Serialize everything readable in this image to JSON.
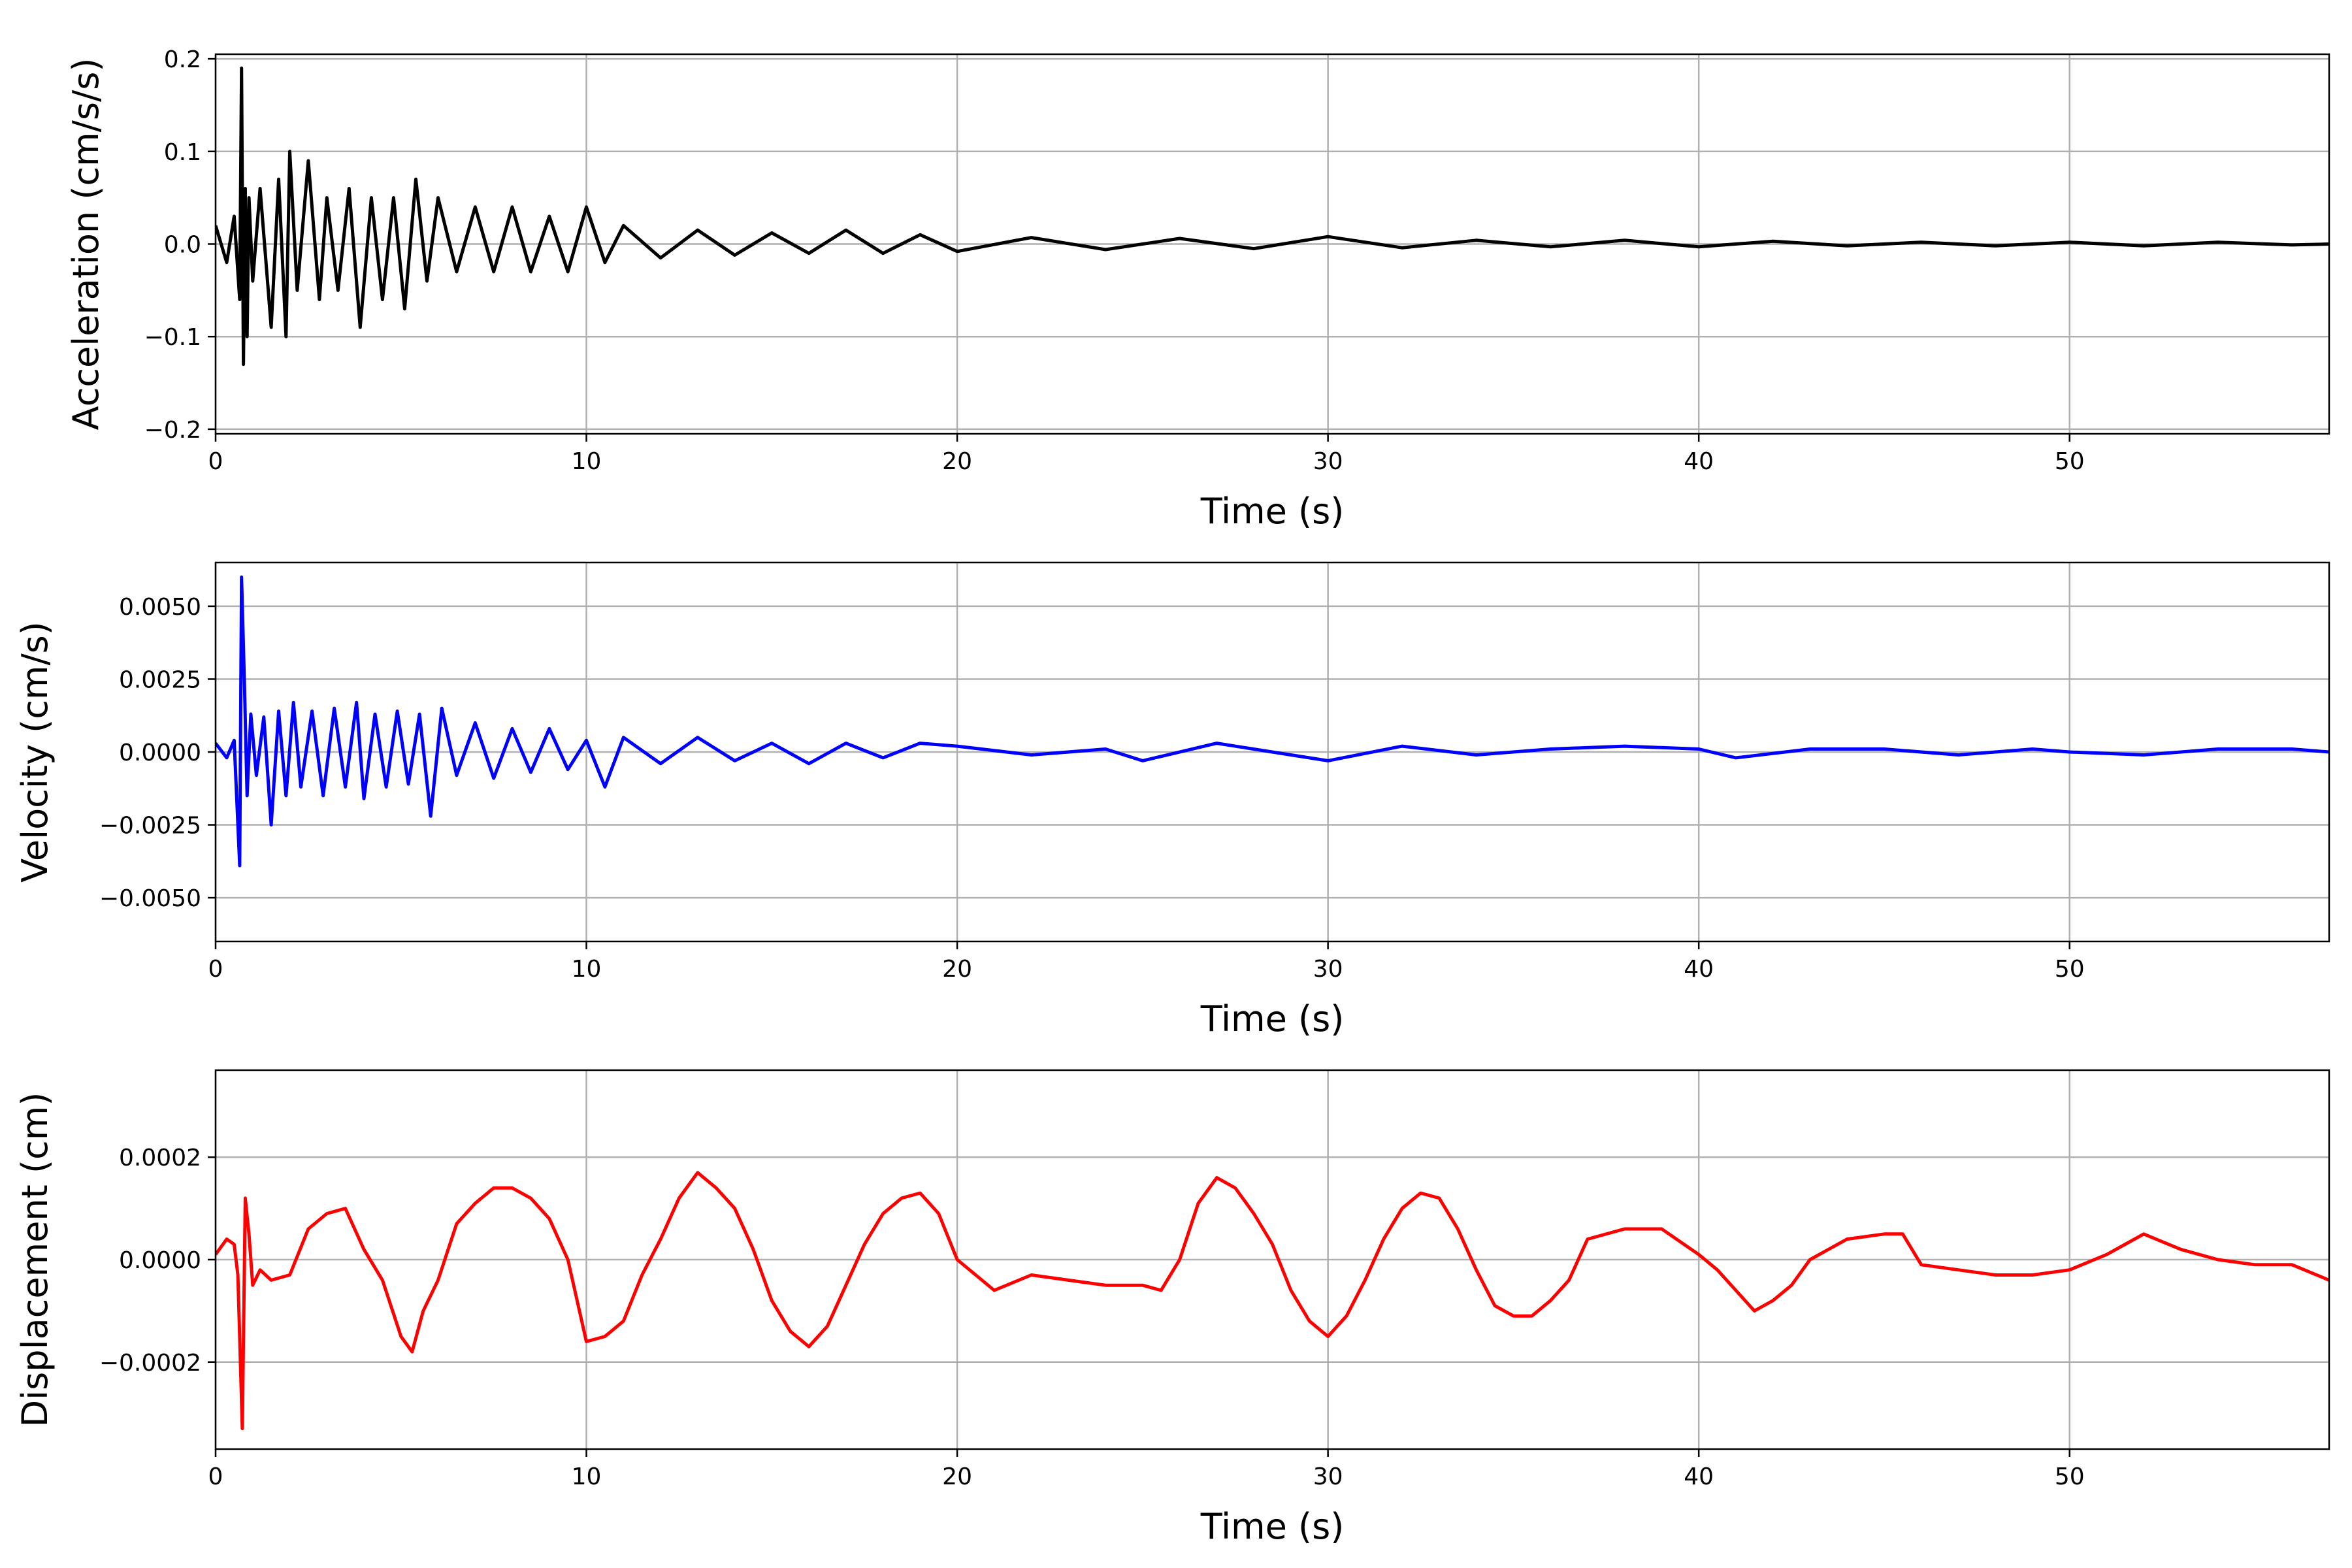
{
  "chart_data": [
    {
      "type": "line",
      "xlabel": "Time (s)",
      "ylabel": "Acceleration (cm/s/s)",
      "xlim": [
        0,
        57
      ],
      "ylim": [
        -0.205,
        0.205
      ],
      "xticks": [
        0,
        10,
        20,
        30,
        40,
        50
      ],
      "yticks": [
        -0.2,
        -0.1,
        0.0,
        0.1,
        0.2
      ],
      "ytick_labels": [
        "−0.2",
        "−0.1",
        "0.0",
        "0.1",
        "0.2"
      ],
      "grid": true,
      "color": "#000000",
      "series": [
        {
          "x": [
            0,
            0.3,
            0.5,
            0.65,
            0.7,
            0.75,
            0.8,
            0.85,
            0.9,
            1.0,
            1.2,
            1.5,
            1.7,
            1.9,
            2.0,
            2.2,
            2.5,
            2.8,
            3.0,
            3.3,
            3.6,
            3.9,
            4.2,
            4.5,
            4.8,
            5.1,
            5.4,
            5.7,
            6.0,
            6.5,
            7.0,
            7.5,
            8.0,
            8.5,
            9.0,
            9.5,
            10.0,
            10.5,
            11.0,
            12.0,
            13.0,
            14.0,
            15.0,
            16.0,
            17.0,
            18.0,
            19.0,
            20.0,
            22.0,
            24.0,
            26.0,
            28.0,
            30.0,
            32.0,
            34.0,
            36.0,
            38.0,
            40.0,
            42.0,
            44.0,
            46.0,
            48.0,
            50.0,
            52.0,
            54.0,
            56.0,
            57.0
          ],
          "y": [
            0.02,
            -0.02,
            0.03,
            -0.06,
            0.19,
            -0.13,
            0.06,
            -0.1,
            0.05,
            -0.04,
            0.06,
            -0.09,
            0.07,
            -0.1,
            0.1,
            -0.05,
            0.09,
            -0.06,
            0.05,
            -0.05,
            0.06,
            -0.09,
            0.05,
            -0.06,
            0.05,
            -0.07,
            0.07,
            -0.04,
            0.05,
            -0.03,
            0.04,
            -0.03,
            0.04,
            -0.03,
            0.03,
            -0.03,
            0.04,
            -0.02,
            0.02,
            -0.015,
            0.015,
            -0.012,
            0.012,
            -0.01,
            0.015,
            -0.01,
            0.01,
            -0.008,
            0.007,
            -0.006,
            0.006,
            -0.005,
            0.008,
            -0.004,
            0.004,
            -0.003,
            0.004,
            -0.003,
            0.003,
            -0.002,
            0.002,
            -0.002,
            0.002,
            -0.002,
            0.002,
            -0.001,
            0.0
          ]
        }
      ]
    },
    {
      "type": "line",
      "xlabel": "Time (s)",
      "ylabel": "Velocity (cm/s)",
      "xlim": [
        0,
        57
      ],
      "ylim": [
        -0.0065,
        0.0065
      ],
      "xticks": [
        0,
        10,
        20,
        30,
        40,
        50
      ],
      "yticks": [
        -0.005,
        -0.0025,
        0.0,
        0.0025,
        0.005
      ],
      "ytick_labels": [
        "−0.0050",
        "−0.0025",
        "0.0000",
        "0.0025",
        "0.0050"
      ],
      "grid": true,
      "color": "#0000ff",
      "series": [
        {
          "x": [
            0,
            0.3,
            0.5,
            0.65,
            0.7,
            0.78,
            0.85,
            0.95,
            1.1,
            1.3,
            1.5,
            1.7,
            1.9,
            2.1,
            2.3,
            2.6,
            2.9,
            3.2,
            3.5,
            3.8,
            4.0,
            4.3,
            4.6,
            4.9,
            5.2,
            5.5,
            5.8,
            6.1,
            6.5,
            7.0,
            7.5,
            8.0,
            8.5,
            9.0,
            9.5,
            10.0,
            10.5,
            11.0,
            12.0,
            13.0,
            14.0,
            15.0,
            16.0,
            17.0,
            18.0,
            19.0,
            20.0,
            22.0,
            24.0,
            25.0,
            27.0,
            29.0,
            30.0,
            32.0,
            34.0,
            36.0,
            38.0,
            40.0,
            41.0,
            43.0,
            45.0,
            47.0,
            49.0,
            50.0,
            52.0,
            54.0,
            56.0,
            57.0
          ],
          "y": [
            0.0003,
            -0.0002,
            0.0004,
            -0.0039,
            0.006,
            0.0022,
            -0.0015,
            0.0013,
            -0.0008,
            0.0012,
            -0.0025,
            0.0014,
            -0.0015,
            0.0017,
            -0.0012,
            0.0014,
            -0.0015,
            0.0015,
            -0.0012,
            0.0017,
            -0.0016,
            0.0013,
            -0.0012,
            0.0014,
            -0.0011,
            0.0013,
            -0.0022,
            0.0015,
            -0.0008,
            0.001,
            -0.0009,
            0.0008,
            -0.0007,
            0.0008,
            -0.0006,
            0.0004,
            -0.0012,
            0.0005,
            -0.0004,
            0.0005,
            -0.0003,
            0.0003,
            -0.0004,
            0.0003,
            -0.0002,
            0.0003,
            0.0002,
            -0.0001,
            0.0001,
            -0.0003,
            0.0003,
            -0.0001,
            -0.0003,
            0.0002,
            -0.0001,
            0.0001,
            0.0002,
            0.0001,
            -0.0002,
            0.0001,
            0.0001,
            -0.0001,
            0.0001,
            0.0,
            -0.0001,
            0.0001,
            0.0001,
            0.0
          ]
        }
      ]
    },
    {
      "type": "line",
      "xlabel": "Time (s)",
      "ylabel": "Displacement (cm)",
      "xlim": [
        0,
        57
      ],
      "ylim": [
        -0.00037,
        0.00037
      ],
      "xticks": [
        0,
        10,
        20,
        30,
        40,
        50
      ],
      "yticks": [
        -0.0002,
        0.0,
        0.0002
      ],
      "ytick_labels": [
        "−0.0002",
        "0.0000",
        "0.0002"
      ],
      "grid": true,
      "color": "#ff0000",
      "series": [
        {
          "x": [
            0,
            0.3,
            0.5,
            0.6,
            0.72,
            0.8,
            0.9,
            1.0,
            1.2,
            1.5,
            2.0,
            2.5,
            3.0,
            3.5,
            4.0,
            4.5,
            5.0,
            5.3,
            5.6,
            6.0,
            6.5,
            7.0,
            7.5,
            8.0,
            8.5,
            9.0,
            9.5,
            10.0,
            10.5,
            11.0,
            11.5,
            12.0,
            12.5,
            13.0,
            13.5,
            14.0,
            14.5,
            15.0,
            15.5,
            16.0,
            16.5,
            17.0,
            17.5,
            18.0,
            18.5,
            19.0,
            19.5,
            20.0,
            21.0,
            22.0,
            23.0,
            24.0,
            25.0,
            25.5,
            26.0,
            26.5,
            27.0,
            27.5,
            28.0,
            28.5,
            29.0,
            29.5,
            30.0,
            30.5,
            31.0,
            31.5,
            32.0,
            32.5,
            33.0,
            33.5,
            34.0,
            34.5,
            35.0,
            35.5,
            36.0,
            36.5,
            37.0,
            38.0,
            39.0,
            40.0,
            40.5,
            41.0,
            41.5,
            42.0,
            42.5,
            43.0,
            44.0,
            45.0,
            45.5,
            46.0,
            47.0,
            48.0,
            49.0,
            50.0,
            51.0,
            51.5,
            52.0,
            53.0,
            54.0,
            55.0,
            56.0,
            57.0
          ],
          "y": [
            1e-05,
            4e-05,
            3e-05,
            -3e-05,
            -0.00033,
            0.00012,
            5e-05,
            -5e-05,
            -2e-05,
            -4e-05,
            -3e-05,
            6e-05,
            9e-05,
            0.0001,
            2e-05,
            -4e-05,
            -0.00015,
            -0.00018,
            -0.0001,
            -4e-05,
            7e-05,
            0.00011,
            0.00014,
            0.00014,
            0.00012,
            8e-05,
            0.0,
            -0.00016,
            -0.00015,
            -0.00012,
            -3e-05,
            4e-05,
            0.00012,
            0.00017,
            0.00014,
            0.0001,
            2e-05,
            -8e-05,
            -0.00014,
            -0.00017,
            -0.00013,
            -5e-05,
            3e-05,
            9e-05,
            0.00012,
            0.00013,
            9e-05,
            0.0,
            -6e-05,
            -3e-05,
            -4e-05,
            -5e-05,
            -5e-05,
            -6e-05,
            0.0,
            0.00011,
            0.00016,
            0.00014,
            9e-05,
            3e-05,
            -6e-05,
            -0.00012,
            -0.00015,
            -0.00011,
            -4e-05,
            4e-05,
            0.0001,
            0.00013,
            0.00012,
            6e-05,
            -2e-05,
            -9e-05,
            -0.00011,
            -0.00011,
            -8e-05,
            -4e-05,
            4e-05,
            6e-05,
            6e-05,
            1e-05,
            -2e-05,
            -6e-05,
            -0.0001,
            -8e-05,
            -5e-05,
            0.0,
            4e-05,
            5e-05,
            5e-05,
            -1e-05,
            -2e-05,
            -3e-05,
            -3e-05,
            -2e-05,
            1e-05,
            3e-05,
            5e-05,
            2e-05,
            0.0,
            -1e-05,
            -1e-05,
            -4e-05
          ]
        }
      ]
    }
  ]
}
